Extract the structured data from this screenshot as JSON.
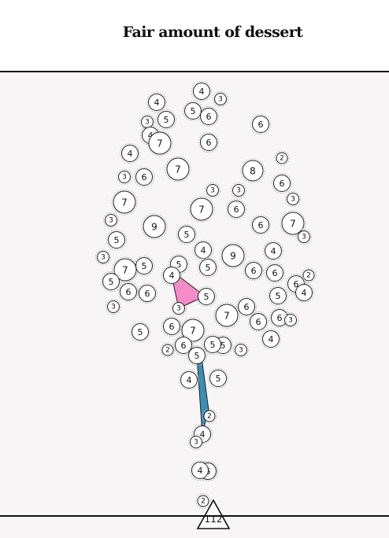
{
  "title": "Fair amount of dessert",
  "footer_marker": {
    "label": "112"
  },
  "colors": {
    "pink_shape": "#f48cc8",
    "blue_shape": "#3a8fb5",
    "node_stroke": "#222222",
    "rule": "#111111"
  },
  "nodes": [
    {
      "label": "4"
    },
    {
      "label": "3"
    },
    {
      "label": "4"
    },
    {
      "label": "5"
    },
    {
      "label": "6"
    },
    {
      "label": "3"
    },
    {
      "label": "5"
    },
    {
      "label": "6"
    },
    {
      "label": "4"
    },
    {
      "label": "7"
    },
    {
      "label": "6"
    },
    {
      "label": "4"
    },
    {
      "label": "2"
    },
    {
      "label": "3"
    },
    {
      "label": "6"
    },
    {
      "label": "7"
    },
    {
      "label": "8"
    },
    {
      "label": "6"
    },
    {
      "label": "3"
    },
    {
      "label": "3"
    },
    {
      "label": "3"
    },
    {
      "label": "7"
    },
    {
      "label": "7"
    },
    {
      "label": "6"
    },
    {
      "label": "3"
    },
    {
      "label": "6"
    },
    {
      "label": "7"
    },
    {
      "label": "9"
    },
    {
      "label": "3"
    },
    {
      "label": "5"
    },
    {
      "label": "5"
    },
    {
      "label": "3"
    },
    {
      "label": "4"
    },
    {
      "label": "4"
    },
    {
      "label": "9"
    },
    {
      "label": "5"
    },
    {
      "label": "5"
    },
    {
      "label": "7"
    },
    {
      "label": "5"
    },
    {
      "label": "4"
    },
    {
      "label": "6"
    },
    {
      "label": "6"
    },
    {
      "label": "2"
    },
    {
      "label": "5"
    },
    {
      "label": "6"
    },
    {
      "label": "6"
    },
    {
      "label": "6"
    },
    {
      "label": "4"
    },
    {
      "label": "5"
    },
    {
      "label": "5"
    },
    {
      "label": "3"
    },
    {
      "label": "3"
    },
    {
      "label": "7"
    },
    {
      "label": "6"
    },
    {
      "label": "6"
    },
    {
      "label": "6"
    },
    {
      "label": "3"
    },
    {
      "label": "5"
    },
    {
      "label": "6"
    },
    {
      "label": "7"
    },
    {
      "label": "4"
    },
    {
      "label": "2"
    },
    {
      "label": "6"
    },
    {
      "label": "5"
    },
    {
      "label": "5"
    },
    {
      "label": "5"
    },
    {
      "label": "3"
    },
    {
      "label": "5"
    },
    {
      "label": "4"
    },
    {
      "label": "5"
    },
    {
      "label": "2"
    },
    {
      "label": "4"
    },
    {
      "label": "3"
    },
    {
      "label": "5"
    },
    {
      "label": "4"
    },
    {
      "label": "2"
    }
  ]
}
